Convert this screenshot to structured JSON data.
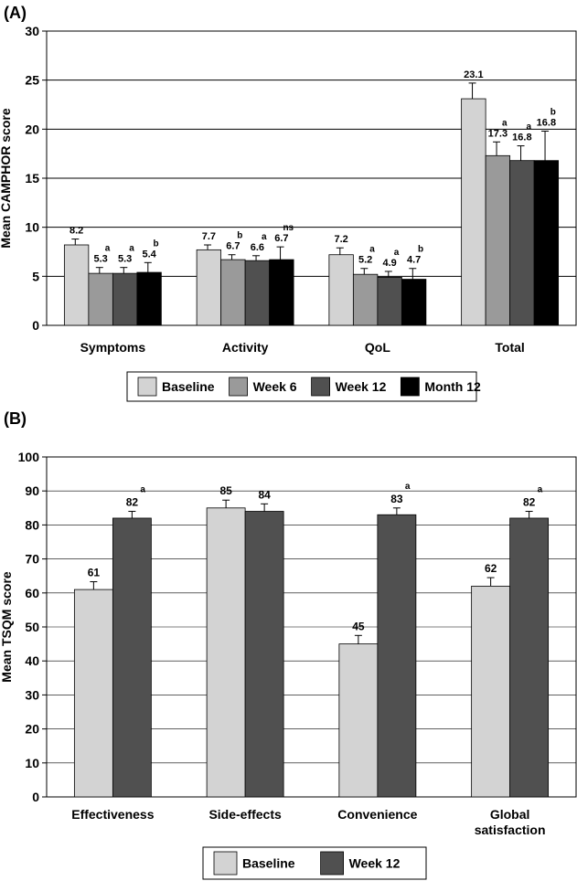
{
  "chart_data": [
    {
      "panel_label": "(A)",
      "type": "bar",
      "ylabel": "Mean CAMPHOR score",
      "ylim": [
        0,
        30
      ],
      "yticks": [
        0,
        5,
        10,
        15,
        20,
        25,
        30
      ],
      "grid": true,
      "legend_position": "bottom",
      "categories": [
        "Symptoms",
        "Activity",
        "QoL",
        "Total"
      ],
      "series": [
        {
          "name": "Baseline",
          "color": "#d3d3d3",
          "values": [
            8.2,
            7.7,
            7.2,
            23.1
          ],
          "labels": [
            "8.2",
            "7.7",
            "7.2",
            "23.1"
          ],
          "errors": [
            0.6,
            0.5,
            0.7,
            1.6
          ],
          "sig": [
            "",
            "",
            "",
            ""
          ]
        },
        {
          "name": "Week 6",
          "color": "#9a9a9a",
          "values": [
            5.3,
            6.7,
            5.2,
            17.3
          ],
          "labels": [
            "5.3",
            "6.7",
            "5.2",
            "17.3"
          ],
          "errors": [
            0.6,
            0.5,
            0.6,
            1.4
          ],
          "sig": [
            "a",
            "b",
            "a",
            "a"
          ]
        },
        {
          "name": "Week 12",
          "color": "#505050",
          "values": [
            5.3,
            6.6,
            4.9,
            16.8
          ],
          "labels": [
            "5.3",
            "6.6",
            "4.9",
            "16.8"
          ],
          "errors": [
            0.6,
            0.5,
            0.6,
            1.5
          ],
          "sig": [
            "a",
            "a",
            "a",
            "a"
          ]
        },
        {
          "name": "Month 12",
          "color": "#000000",
          "values": [
            5.4,
            6.7,
            4.7,
            16.8
          ],
          "labels": [
            "5.4",
            "6.7",
            "4.7",
            "16.8"
          ],
          "errors": [
            1.0,
            1.3,
            1.1,
            3.0
          ],
          "sig": [
            "b",
            "ns",
            "b",
            "b"
          ]
        }
      ]
    },
    {
      "panel_label": "(B)",
      "type": "bar",
      "ylabel": "Mean TSQM score",
      "ylim": [
        0,
        100
      ],
      "yticks": [
        0,
        10,
        20,
        30,
        40,
        50,
        60,
        70,
        80,
        90,
        100
      ],
      "grid": true,
      "legend_position": "bottom",
      "categories": [
        [
          "Effectiveness"
        ],
        [
          "Side-effects"
        ],
        [
          "Convenience"
        ],
        [
          "Global",
          "satisfaction"
        ]
      ],
      "series": [
        {
          "name": "Baseline",
          "color": "#d3d3d3",
          "values": [
            61,
            85,
            45,
            62
          ],
          "labels": [
            "61",
            "85",
            "45",
            "62"
          ],
          "errors": [
            2.3,
            2.3,
            2.5,
            2.5
          ],
          "sig": [
            "",
            "",
            "",
            ""
          ]
        },
        {
          "name": "Week 12",
          "color": "#505050",
          "values": [
            82,
            84,
            83,
            82
          ],
          "labels": [
            "82",
            "84",
            "83",
            "82"
          ],
          "errors": [
            2.0,
            2.2,
            2.0,
            2.0
          ],
          "sig": [
            "a",
            "",
            "a",
            "a"
          ]
        }
      ]
    }
  ]
}
